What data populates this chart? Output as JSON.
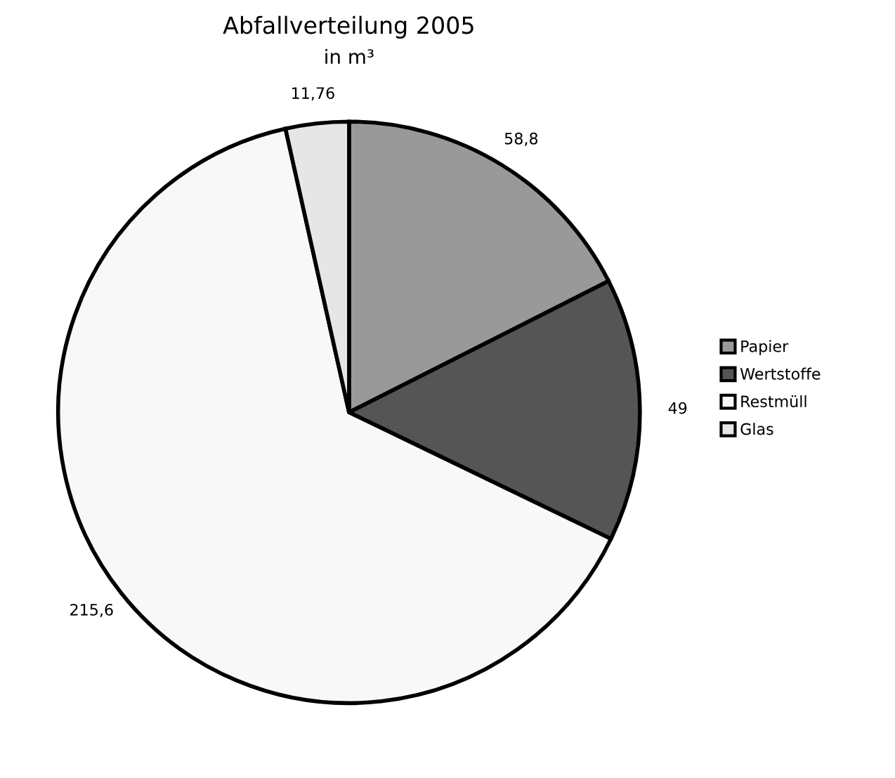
{
  "chart_data": {
    "type": "pie",
    "title": "Abfallverteilung 2005",
    "subtitle": "in m³",
    "categories": [
      "Papier",
      "Wertstoffe",
      "Restmüll",
      "Glas"
    ],
    "values": [
      58.8,
      49,
      215.6,
      11.76
    ],
    "value_labels": [
      "58,8",
      "49",
      "215,6",
      "11,76"
    ],
    "colors": [
      "#999999",
      "#555555",
      "#f8f8f8",
      "#e6e6e6"
    ],
    "legend": "right"
  }
}
